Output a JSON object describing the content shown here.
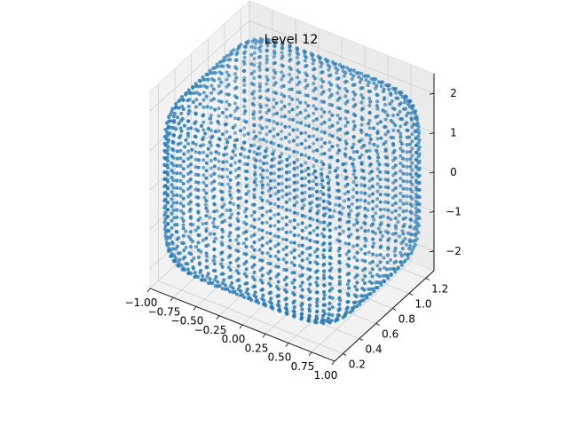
{
  "chart_data": {
    "type": "scatter",
    "projection": "3d",
    "title": "Level 12",
    "xlabel": "",
    "ylabel": "",
    "zlabel": "",
    "xlim": [
      -1.0,
      1.0
    ],
    "ylim": [
      0.1,
      1.3
    ],
    "zlim": [
      -2.5,
      2.5
    ],
    "xticks": [
      "−1.00",
      "−0.75",
      "−0.50",
      "−0.25",
      "0.00",
      "0.25",
      "0.50",
      "0.75",
      "1.00"
    ],
    "yticks": [
      "0.2",
      "0.4",
      "0.6",
      "0.8",
      "1.0",
      "1.2"
    ],
    "zticks": [
      "−2",
      "−1",
      "0",
      "1",
      "2"
    ],
    "grid": true,
    "color": "#1f77b4",
    "shape": "rounded-box",
    "x_range": [
      -1.0,
      1.0
    ],
    "y_range": [
      0.1,
      1.3
    ],
    "z_range": [
      -2.2,
      2.2
    ],
    "x_count": 24,
    "z_count": 24,
    "y_count": 14
  }
}
